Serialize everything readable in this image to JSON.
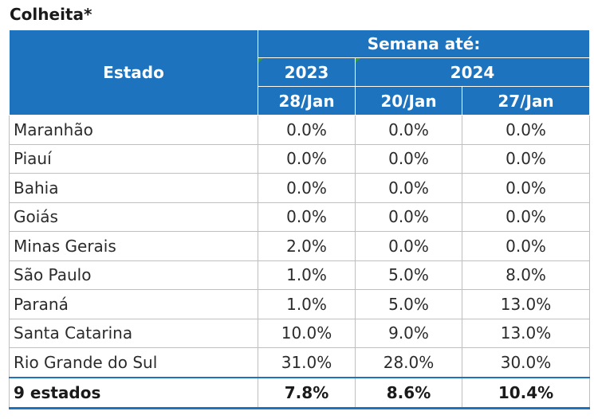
{
  "title": "Colheita*",
  "header": {
    "estado": "Estado",
    "semana": "Semana até:",
    "year_2023": "2023",
    "year_2024": "2024",
    "date_2023": "28/Jan",
    "date_2024_a": "20/Jan",
    "date_2024_b": "27/Jan"
  },
  "rows": [
    {
      "estado": "Maranhão",
      "v2023": "0.0%",
      "v2024a": "0.0%",
      "v2024b": "0.0%"
    },
    {
      "estado": "Piauí",
      "v2023": "0.0%",
      "v2024a": "0.0%",
      "v2024b": "0.0%"
    },
    {
      "estado": "Bahia",
      "v2023": "0.0%",
      "v2024a": "0.0%",
      "v2024b": "0.0%"
    },
    {
      "estado": "Goiás",
      "v2023": "0.0%",
      "v2024a": "0.0%",
      "v2024b": "0.0%"
    },
    {
      "estado": "Minas Gerais",
      "v2023": "2.0%",
      "v2024a": "0.0%",
      "v2024b": "0.0%"
    },
    {
      "estado": "São Paulo",
      "v2023": "1.0%",
      "v2024a": "5.0%",
      "v2024b": "8.0%"
    },
    {
      "estado": "Paraná",
      "v2023": "1.0%",
      "v2024a": "5.0%",
      "v2024b": "13.0%"
    },
    {
      "estado": "Santa Catarina",
      "v2023": "10.0%",
      "v2024a": "9.0%",
      "v2024b": "13.0%"
    },
    {
      "estado": "Rio Grande do Sul",
      "v2023": "31.0%",
      "v2024a": "28.0%",
      "v2024b": "30.0%"
    }
  ],
  "total": {
    "estado": "9 estados",
    "v2023": "7.8%",
    "v2024a": "8.6%",
    "v2024b": "10.4%"
  },
  "colors": {
    "header_bg": "#1e73be",
    "header_text": "#ffffff",
    "grid": "#bfbfbf"
  }
}
